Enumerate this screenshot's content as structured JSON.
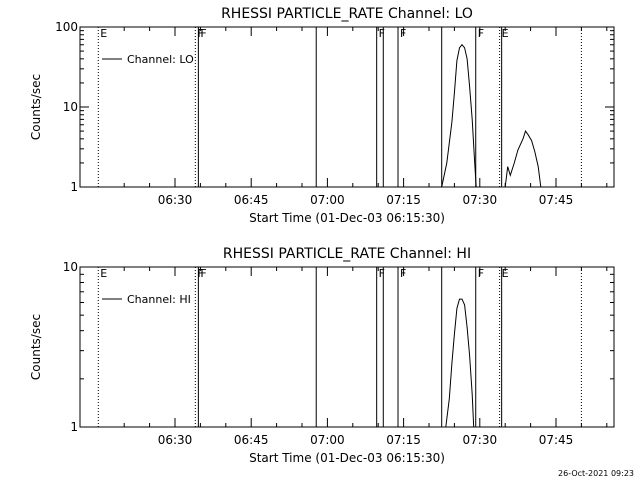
{
  "footer": {
    "timestamp": "26-Oct-2021 09:23"
  },
  "chart_data": [
    {
      "type": "line",
      "title": "RHESSI PARTICLE_RATE Channel: LO",
      "xlabel": "Start Time (01-Dec-03 06:15:30)",
      "ylabel": "Counts/sec",
      "y_scale": "log",
      "ylim": [
        1,
        100
      ],
      "y_ticks": [
        1,
        10,
        100
      ],
      "y_tick_labels": [
        "1",
        "10",
        "100"
      ],
      "xlim_minutes": [
        15.5,
        55.5
      ],
      "x_ticks_minutes": [
        30,
        45,
        60,
        75,
        90,
        105
      ],
      "x_tick_labels": [
        "06:30",
        "06:45",
        "07:00",
        "07:15",
        "07:30",
        "07:45"
      ],
      "legend": {
        "placement": "top-left",
        "label": "Channel: LO"
      },
      "flags": [
        {
          "minute": 14.9,
          "label": "E",
          "style": "dotted"
        },
        {
          "minute": 34.0,
          "label": "F",
          "style": "dotted"
        },
        {
          "minute": 34.6,
          "label": "F",
          "style": "solid"
        },
        {
          "minute": 57.8,
          "label": "",
          "style": "solid"
        },
        {
          "minute": 69.7,
          "label": "F",
          "style": "solid"
        },
        {
          "minute": 71.0,
          "label": "",
          "style": "solid"
        },
        {
          "minute": 73.9,
          "label": "F",
          "style": "solid"
        },
        {
          "minute": 82.5,
          "label": "",
          "style": "solid"
        },
        {
          "minute": 89.2,
          "label": "F",
          "style": "solid"
        },
        {
          "minute": 93.9,
          "label": "E",
          "style": "dotted"
        },
        {
          "minute": 94.3,
          "label": "",
          "style": "solid"
        },
        {
          "minute": 110.0,
          "label": "",
          "style": "dotted"
        }
      ],
      "series": [
        {
          "name": "Channel: LO",
          "segments": [
            {
              "x": [
                82.5,
                83.5,
                84.5,
                85.0,
                85.5,
                86.0,
                86.5,
                87.0,
                87.5,
                88.0,
                88.5,
                89.0,
                89.3
              ],
              "y": [
                1.0,
                2.0,
                6.5,
                15.0,
                38.0,
                55.0,
                60.0,
                55.0,
                40.0,
                18.0,
                7.0,
                2.0,
                1.0
              ]
            },
            {
              "x": [
                95.0,
                95.5,
                96.0,
                96.8,
                97.5,
                98.5,
                99.0,
                99.5,
                100.2,
                100.8,
                101.5,
                102.0
              ],
              "y": [
                1.0,
                1.8,
                1.4,
                2.0,
                2.9,
                4.0,
                5.0,
                4.5,
                3.8,
                2.8,
                1.8,
                1.0
              ]
            }
          ]
        }
      ]
    },
    {
      "type": "line",
      "title": "RHESSI PARTICLE_RATE Channel: HI",
      "xlabel": "Start Time (01-Dec-03 06:15:30)",
      "ylabel": "Counts/sec",
      "y_scale": "log",
      "ylim": [
        1,
        10
      ],
      "y_ticks": [
        1,
        10
      ],
      "y_tick_labels": [
        "1",
        "10"
      ],
      "xlim_minutes": [
        15.5,
        55.5
      ],
      "x_ticks_minutes": [
        30,
        45,
        60,
        75,
        90,
        105
      ],
      "x_tick_labels": [
        "06:30",
        "06:45",
        "07:00",
        "07:15",
        "07:30",
        "07:45"
      ],
      "legend": {
        "placement": "top-left",
        "label": "Channel: HI"
      },
      "flags": [
        {
          "minute": 14.9,
          "label": "E",
          "style": "dotted"
        },
        {
          "minute": 34.0,
          "label": "F",
          "style": "dotted"
        },
        {
          "minute": 34.6,
          "label": "F",
          "style": "solid"
        },
        {
          "minute": 57.8,
          "label": "",
          "style": "solid"
        },
        {
          "minute": 69.7,
          "label": "F",
          "style": "solid"
        },
        {
          "minute": 71.0,
          "label": "",
          "style": "solid"
        },
        {
          "minute": 73.9,
          "label": "F",
          "style": "solid"
        },
        {
          "minute": 82.5,
          "label": "",
          "style": "solid"
        },
        {
          "minute": 89.2,
          "label": "F",
          "style": "solid"
        },
        {
          "minute": 93.9,
          "label": "E",
          "style": "dotted"
        },
        {
          "minute": 94.3,
          "label": "",
          "style": "solid"
        },
        {
          "minute": 110.0,
          "label": "",
          "style": "dotted"
        }
      ],
      "series": [
        {
          "name": "Channel: HI",
          "segments": [
            {
              "x": [
                83.3,
                84.0,
                84.5,
                85.0,
                85.5,
                86.0,
                86.5,
                87.0,
                87.5,
                88.0,
                88.5,
                88.8
              ],
              "y": [
                1.0,
                1.5,
                2.5,
                3.8,
                5.5,
                6.3,
                6.3,
                5.8,
                4.2,
                2.8,
                1.6,
                1.0
              ]
            }
          ]
        }
      ]
    }
  ]
}
